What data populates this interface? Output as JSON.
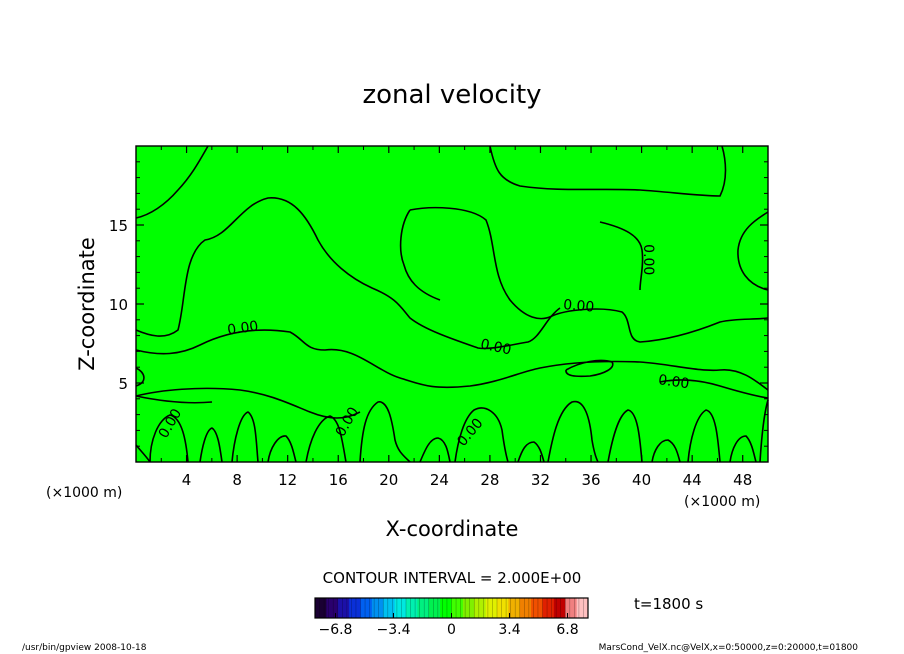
{
  "chart_data": {
    "type": "contour",
    "title": "zonal velocity",
    "xlabel": "X-coordinate",
    "ylabel": "Z-coordinate",
    "x_unit": "(×1000 m)",
    "y_unit": "(×1000 m)",
    "xlim": [
      0,
      50
    ],
    "ylim": [
      0,
      20
    ],
    "xticks": [
      4,
      8,
      12,
      16,
      20,
      24,
      28,
      32,
      36,
      40,
      44,
      48
    ],
    "yticks": [
      5,
      10,
      15
    ],
    "fill_color": "#00ff00",
    "contour_interval_text": "CONTOUR INTERVAL = 2.000E+00",
    "contour_labels": [
      {
        "text": "0.00",
        "x": 8.5,
        "y": 8.2,
        "angle": -8
      },
      {
        "text": "0.00",
        "x": 28.4,
        "y": 7.0,
        "angle": 12
      },
      {
        "text": "0.00",
        "x": 35.0,
        "y": 9.6,
        "angle": 5
      },
      {
        "text": "0.00",
        "x": 40.2,
        "y": 12.8,
        "angle": 90
      },
      {
        "text": "0.00",
        "x": 42.5,
        "y": 4.8,
        "angle": 8
      },
      {
        "text": "0.00",
        "x": 3.0,
        "y": 2.3,
        "angle": -60
      },
      {
        "text": "0.00",
        "x": 17.0,
        "y": 2.4,
        "angle": -60
      },
      {
        "text": "0.00",
        "x": 26.7,
        "y": 1.7,
        "angle": -50
      }
    ],
    "colorbar": {
      "ticks": [
        "−6.8",
        "−3.4",
        "0",
        "3.4",
        "6.8"
      ],
      "tick_values": [
        -6.8,
        -3.4,
        0,
        3.4,
        6.8
      ],
      "range": [
        -8,
        8
      ],
      "colors": [
        "#1a0033",
        "#2a006e",
        "#1c10a8",
        "#0a30d8",
        "#0060f0",
        "#0090f0",
        "#00c0f0",
        "#00e8e0",
        "#00f0b0",
        "#00f080",
        "#00f050",
        "#00ff00",
        "#40ff00",
        "#80f000",
        "#b0f000",
        "#e0f000",
        "#f0e000",
        "#f0b000",
        "#f08000",
        "#f05000",
        "#e02000",
        "#c00000",
        "#f08080",
        "#ffc0c0"
      ]
    },
    "time_text": "t=1800 s"
  },
  "footer": {
    "left": "/usr/bin/gpview   2008-10-18",
    "right": "MarsCond_VelX.nc@VelX,x=0:50000,z=0:20000,t=01800"
  }
}
